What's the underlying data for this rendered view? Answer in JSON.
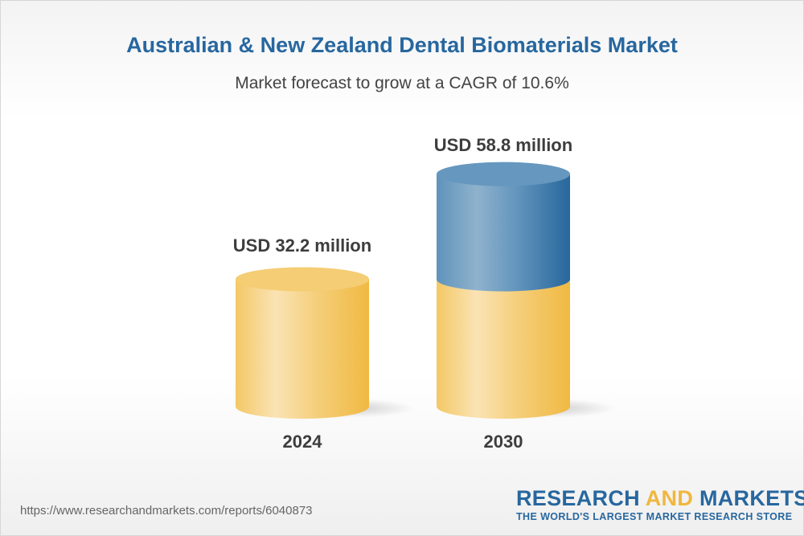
{
  "header": {
    "title": "Australian & New Zealand Dental Biomaterials Market",
    "subtitle": "Market forecast to grow at a CAGR of 10.6%"
  },
  "chart_data": {
    "type": "bar",
    "style": "3d-cylinder",
    "categories": [
      "2024",
      "2030"
    ],
    "values": [
      32.2,
      58.8
    ],
    "data_labels": [
      "USD 32.2 million",
      "USD 58.8 million"
    ],
    "unit": "USD million",
    "colors": {
      "base": "#f2c45a",
      "growth": "#2a6aa0"
    },
    "grid": false,
    "title": "",
    "xlabel": "",
    "ylabel": ""
  },
  "footer": {
    "url": "https://www.researchandmarkets.com/reports/6040873",
    "logo_word1": "RESEARCH",
    "logo_word2": "AND",
    "logo_word3": "MARKETS",
    "logo_tagline": "THE WORLD'S LARGEST MARKET RESEARCH STORE"
  }
}
